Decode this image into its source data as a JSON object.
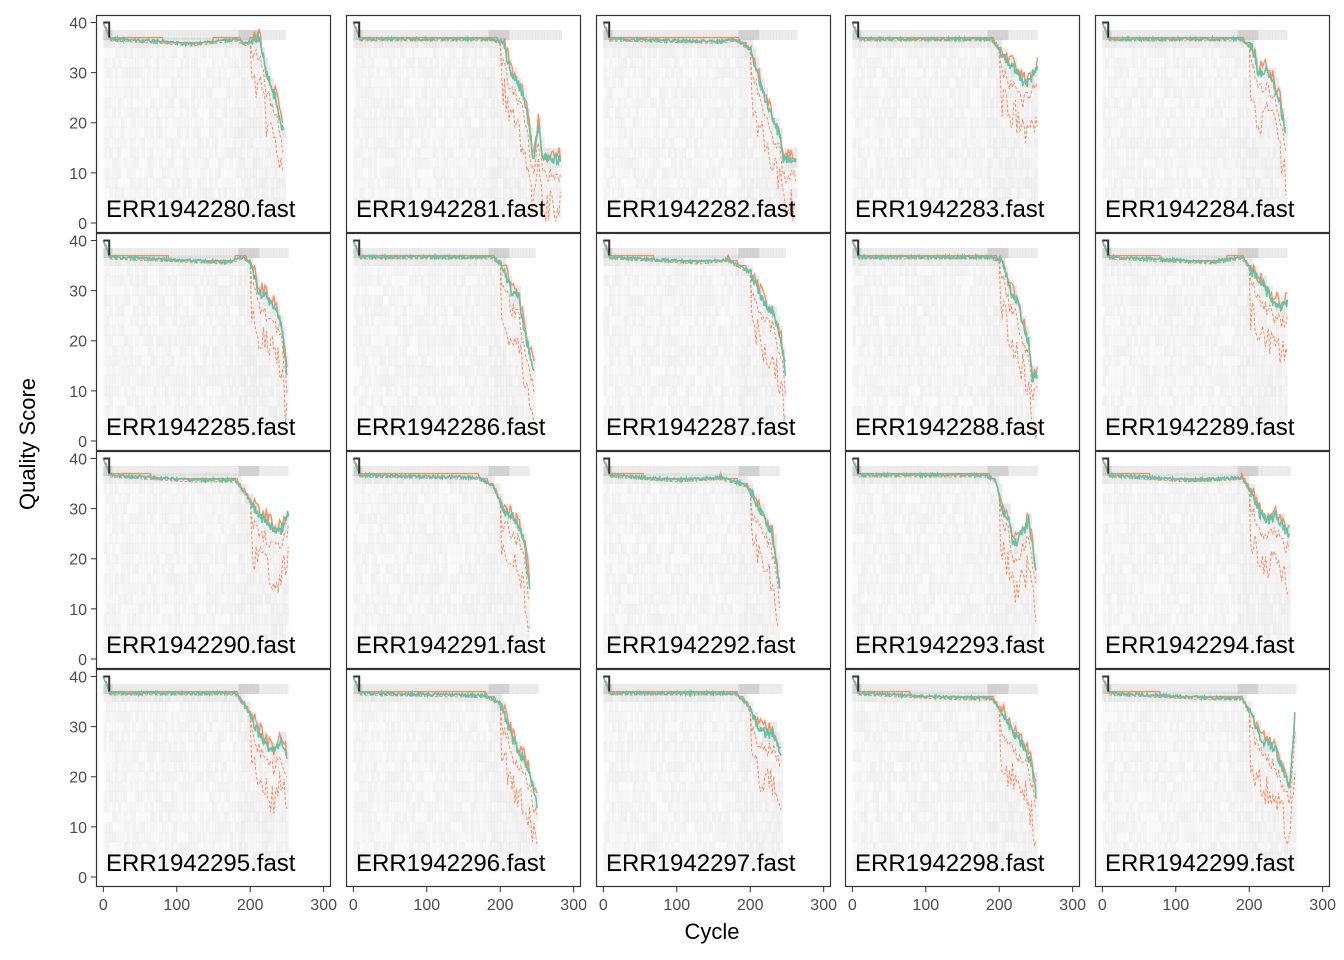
{
  "chart_data": {
    "type": "line",
    "xlabel": "Cycle",
    "ylabel": "Quality Score",
    "xlim": [
      -10,
      310
    ],
    "ylim": [
      -2,
      41.5
    ],
    "xticks": [
      0,
      100,
      200,
      300
    ],
    "yticks": [
      0,
      10,
      20,
      30,
      40
    ],
    "grid": false,
    "series_colors": {
      "mean": "#66c2a5",
      "median": "#fc8d62",
      "quartiles": "#fc8d62",
      "heat": "#d9d9d9"
    },
    "panels": [
      {
        "label": "ERR1942280.fast",
        "profile": [
          [
            0,
            40
          ],
          [
            8,
            37
          ],
          [
            80,
            36.5
          ],
          [
            120,
            36
          ],
          [
            180,
            37
          ],
          [
            195,
            36
          ],
          [
            205,
            37
          ],
          [
            212,
            37
          ],
          [
            222,
            30
          ],
          [
            235,
            25
          ],
          [
            245,
            18
          ]
        ]
      },
      {
        "label": "ERR1942281.fast",
        "profile": [
          [
            0,
            40
          ],
          [
            8,
            37
          ],
          [
            190,
            37
          ],
          [
            205,
            36
          ],
          [
            215,
            30
          ],
          [
            225,
            28
          ],
          [
            235,
            24
          ],
          [
            245,
            13
          ],
          [
            252,
            20
          ],
          [
            258,
            13
          ],
          [
            282,
            13
          ]
        ]
      },
      {
        "label": "ERR1942282.fast",
        "profile": [
          [
            0,
            40
          ],
          [
            8,
            37
          ],
          [
            160,
            36.5
          ],
          [
            180,
            37
          ],
          [
            200,
            35
          ],
          [
            210,
            30
          ],
          [
            220,
            25
          ],
          [
            230,
            21
          ],
          [
            240,
            18
          ],
          [
            245,
            13
          ],
          [
            262,
            13
          ]
        ]
      },
      {
        "label": "ERR1942283.fast",
        "profile": [
          [
            0,
            40
          ],
          [
            8,
            37
          ],
          [
            190,
            37
          ],
          [
            200,
            35
          ],
          [
            212,
            32
          ],
          [
            222,
            31
          ],
          [
            232,
            28
          ],
          [
            242,
            29
          ],
          [
            252,
            31
          ]
        ]
      },
      {
        "label": "ERR1942284.fast",
        "profile": [
          [
            0,
            40
          ],
          [
            8,
            37
          ],
          [
            190,
            37
          ],
          [
            205,
            35
          ],
          [
            212,
            30
          ],
          [
            222,
            31
          ],
          [
            232,
            29
          ],
          [
            242,
            24
          ],
          [
            250,
            18
          ]
        ]
      },
      {
        "label": "ERR1942285.fast",
        "profile": [
          [
            0,
            40
          ],
          [
            8,
            37
          ],
          [
            170,
            36
          ],
          [
            190,
            37
          ],
          [
            200,
            36
          ],
          [
            212,
            30
          ],
          [
            222,
            29
          ],
          [
            232,
            27
          ],
          [
            242,
            24
          ],
          [
            250,
            14
          ]
        ]
      },
      {
        "label": "ERR1942286.fast",
        "profile": [
          [
            0,
            40
          ],
          [
            8,
            37
          ],
          [
            190,
            37
          ],
          [
            205,
            35
          ],
          [
            215,
            30
          ],
          [
            225,
            29
          ],
          [
            232,
            23
          ],
          [
            240,
            18
          ],
          [
            246,
            14
          ]
        ]
      },
      {
        "label": "ERR1942287.fast",
        "profile": [
          [
            0,
            40
          ],
          [
            8,
            37
          ],
          [
            130,
            36
          ],
          [
            170,
            36.5
          ],
          [
            200,
            34
          ],
          [
            212,
            30
          ],
          [
            222,
            27
          ],
          [
            232,
            26
          ],
          [
            242,
            20
          ],
          [
            248,
            14
          ]
        ]
      },
      {
        "label": "ERR1942288.fast",
        "profile": [
          [
            0,
            40
          ],
          [
            8,
            37
          ],
          [
            190,
            37
          ],
          [
            205,
            36
          ],
          [
            215,
            30
          ],
          [
            225,
            28
          ],
          [
            235,
            22
          ],
          [
            240,
            20
          ],
          [
            245,
            13
          ],
          [
            252,
            13
          ]
        ]
      },
      {
        "label": "ERR1942289.fast",
        "profile": [
          [
            0,
            40
          ],
          [
            8,
            37
          ],
          [
            150,
            36
          ],
          [
            190,
            37
          ],
          [
            205,
            34
          ],
          [
            215,
            32
          ],
          [
            225,
            30
          ],
          [
            235,
            28
          ],
          [
            245,
            27
          ],
          [
            252,
            28
          ]
        ]
      },
      {
        "label": "ERR1942290.fast",
        "profile": [
          [
            0,
            40
          ],
          [
            8,
            37
          ],
          [
            120,
            36
          ],
          [
            180,
            36
          ],
          [
            195,
            33
          ],
          [
            210,
            29
          ],
          [
            222,
            28
          ],
          [
            232,
            26
          ],
          [
            242,
            26
          ],
          [
            252,
            29
          ]
        ]
      },
      {
        "label": "ERR1942291.fast",
        "profile": [
          [
            0,
            40
          ],
          [
            8,
            37
          ],
          [
            170,
            36.5
          ],
          [
            190,
            35
          ],
          [
            205,
            30
          ],
          [
            215,
            29
          ],
          [
            225,
            27
          ],
          [
            232,
            24
          ],
          [
            240,
            15
          ]
        ]
      },
      {
        "label": "ERR1942292.fast",
        "profile": [
          [
            0,
            40
          ],
          [
            8,
            37
          ],
          [
            100,
            36
          ],
          [
            160,
            36.5
          ],
          [
            195,
            35
          ],
          [
            210,
            31
          ],
          [
            220,
            28
          ],
          [
            230,
            25
          ],
          [
            240,
            15
          ]
        ]
      },
      {
        "label": "ERR1942293.fast",
        "profile": [
          [
            0,
            40
          ],
          [
            8,
            37
          ],
          [
            180,
            37
          ],
          [
            195,
            36
          ],
          [
            205,
            30
          ],
          [
            212,
            29
          ],
          [
            220,
            23
          ],
          [
            230,
            25
          ],
          [
            240,
            28
          ],
          [
            250,
            18
          ]
        ]
      },
      {
        "label": "ERR1942294.fast",
        "profile": [
          [
            0,
            40
          ],
          [
            8,
            37
          ],
          [
            120,
            36
          ],
          [
            190,
            36.5
          ],
          [
            205,
            33
          ],
          [
            215,
            29
          ],
          [
            225,
            28
          ],
          [
            235,
            29
          ],
          [
            245,
            27
          ],
          [
            255,
            25
          ]
        ]
      },
      {
        "label": "ERR1942295.fast",
        "profile": [
          [
            0,
            40
          ],
          [
            8,
            37
          ],
          [
            180,
            37
          ],
          [
            195,
            34
          ],
          [
            212,
            29
          ],
          [
            222,
            27
          ],
          [
            232,
            25
          ],
          [
            242,
            28
          ],
          [
            250,
            24
          ]
        ]
      },
      {
        "label": "ERR1942296.fast",
        "profile": [
          [
            0,
            40
          ],
          [
            8,
            37
          ],
          [
            180,
            36.5
          ],
          [
            200,
            35
          ],
          [
            212,
            30
          ],
          [
            222,
            26
          ],
          [
            232,
            24
          ],
          [
            242,
            20
          ],
          [
            250,
            15
          ]
        ]
      },
      {
        "label": "ERR1942297.fast",
        "profile": [
          [
            0,
            40
          ],
          [
            8,
            37
          ],
          [
            180,
            37
          ],
          [
            195,
            35
          ],
          [
            212,
            30
          ],
          [
            222,
            29
          ],
          [
            232,
            29
          ],
          [
            242,
            25
          ]
        ]
      },
      {
        "label": "ERR1942298.fast",
        "profile": [
          [
            0,
            40
          ],
          [
            8,
            37
          ],
          [
            150,
            36
          ],
          [
            190,
            36
          ],
          [
            205,
            33
          ],
          [
            215,
            30
          ],
          [
            225,
            28
          ],
          [
            235,
            26
          ],
          [
            245,
            22
          ],
          [
            250,
            17
          ]
        ]
      },
      {
        "label": "ERR1942299.fast",
        "profile": [
          [
            0,
            40
          ],
          [
            8,
            37
          ],
          [
            150,
            36
          ],
          [
            190,
            36
          ],
          [
            205,
            32
          ],
          [
            215,
            28
          ],
          [
            225,
            27
          ],
          [
            235,
            26
          ],
          [
            245,
            22
          ],
          [
            255,
            18
          ],
          [
            262,
            32
          ]
        ]
      }
    ]
  }
}
